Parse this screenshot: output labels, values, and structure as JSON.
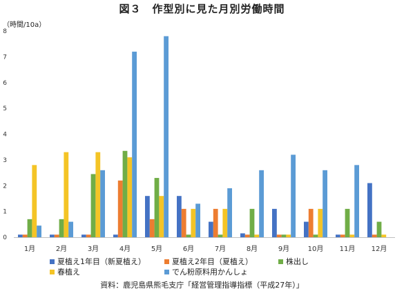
{
  "title": "図３　作型別に見た月別労働時間",
  "source": "資料：鹿児島県熊毛支庁「経営管理指導指標（平成27年）」",
  "chart_data": {
    "type": "bar",
    "ylabel": "（時間/10a）",
    "ylim": [
      0,
      8
    ],
    "yticks": [
      "0",
      "1",
      "2",
      "3",
      "4",
      "5",
      "6",
      "7",
      "8"
    ],
    "grid": false,
    "legend_position": "bottom",
    "categories": [
      "1月",
      "2月",
      "3月",
      "4月",
      "5月",
      "6月",
      "7月",
      "8月",
      "9月",
      "10月",
      "11月",
      "12月"
    ],
    "series": [
      {
        "name": "夏植え1年目（新夏植え）",
        "color": "#4472c4",
        "values": [
          0.1,
          0.1,
          0.1,
          0.1,
          1.6,
          1.6,
          0.6,
          0.15,
          1.1,
          0.6,
          0.1,
          2.1
        ]
      },
      {
        "name": "夏植え2年目（夏植え）",
        "color": "#ed7d31",
        "values": [
          0.1,
          0.1,
          0.1,
          2.2,
          0.7,
          1.1,
          1.1,
          0.1,
          0.1,
          1.1,
          0.1,
          0.1
        ]
      },
      {
        "name": "株出し",
        "color": "#70ad47",
        "values": [
          0.7,
          0.7,
          2.45,
          3.35,
          2.3,
          0.1,
          0.1,
          1.1,
          0.1,
          0.1,
          1.1,
          0.6
        ]
      },
      {
        "name": "春植え",
        "color": "#f4c426",
        "values": [
          2.8,
          3.3,
          3.3,
          3.1,
          1.6,
          1.1,
          1.1,
          0.1,
          0.1,
          1.1,
          0.1,
          0.1
        ]
      },
      {
        "name": "でん粉原料用かんしょ",
        "color": "#5b9bd5",
        "values": [
          0.45,
          0.6,
          2.6,
          7.2,
          7.8,
          1.3,
          1.9,
          2.6,
          3.2,
          2.6,
          2.8,
          0.0
        ]
      }
    ]
  }
}
